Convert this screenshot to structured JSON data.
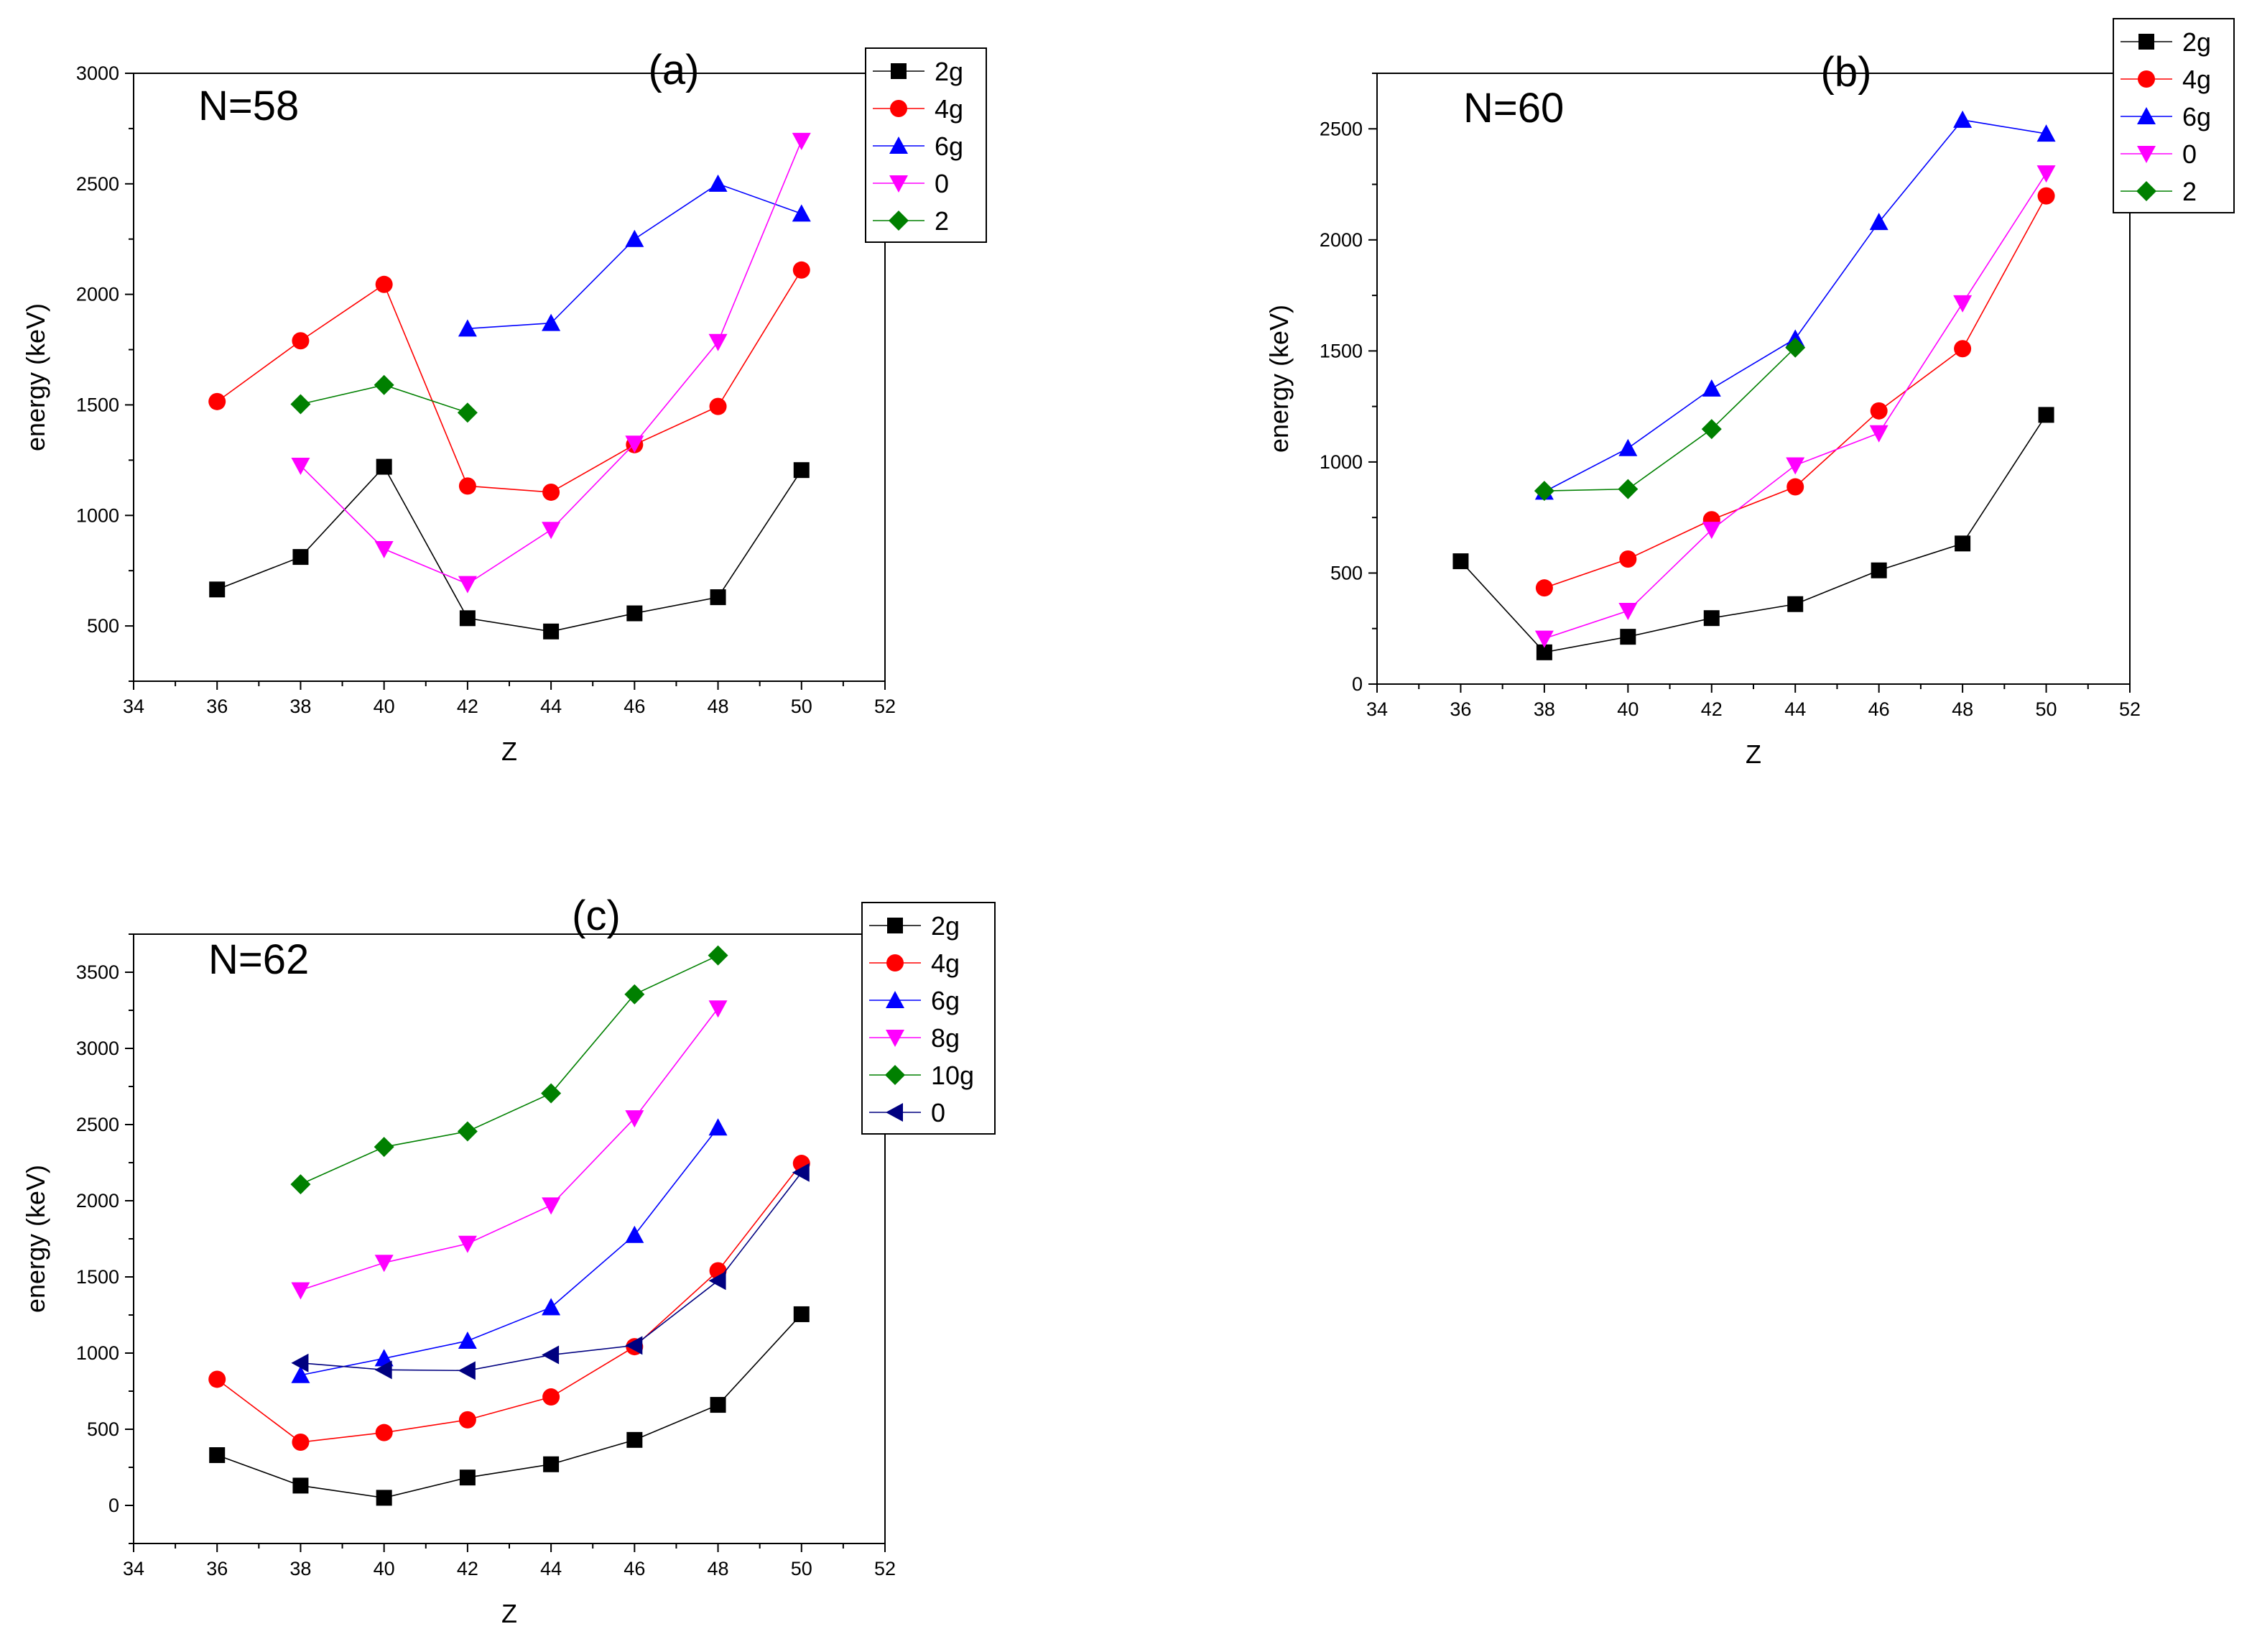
{
  "chart_data": [
    {
      "id": "a",
      "type": "line",
      "panel_label": "(a)",
      "annotation": "N=58",
      "xlabel": "Z",
      "ylabel": "energy (keV)",
      "xlim": [
        34,
        52
      ],
      "ylim": [
        250,
        3000
      ],
      "x_ticks": [
        34,
        36,
        38,
        40,
        42,
        44,
        46,
        48,
        50,
        52
      ],
      "y_ticks": [
        500,
        1000,
        1500,
        2000,
        2500,
        3000
      ],
      "legend_position": "top-right",
      "series": [
        {
          "name": "2g",
          "color": "#000000",
          "marker": "square",
          "points": [
            [
              36,
              665
            ],
            [
              38,
              812
            ],
            [
              40,
              1220
            ],
            [
              42,
              535
            ],
            [
              44,
              475
            ],
            [
              46,
              557
            ],
            [
              48,
              630
            ],
            [
              50,
              1205
            ]
          ]
        },
        {
          "name": "4g",
          "color": "#ff0000",
          "marker": "circle",
          "points": [
            [
              36,
              1515
            ],
            [
              38,
              1790
            ],
            [
              40,
              2045
            ],
            [
              42,
              1133
            ],
            [
              44,
              1105
            ],
            [
              46,
              1320
            ],
            [
              48,
              1493
            ],
            [
              50,
              2110
            ]
          ]
        },
        {
          "name": "6g",
          "color": "#0000ff",
          "marker": "triangle-up",
          "points": [
            [
              42,
              1845
            ],
            [
              44,
              1870
            ],
            [
              46,
              2250
            ],
            [
              48,
              2500
            ],
            [
              50,
              2365
            ]
          ]
        },
        {
          "name": "0",
          "color": "#ff00ff",
          "marker": "triangle-down",
          "points": [
            [
              38,
              1225
            ],
            [
              40,
              848
            ],
            [
              42,
              690
            ],
            [
              44,
              935
            ],
            [
              46,
              1325
            ],
            [
              48,
              1785
            ],
            [
              50,
              2695
            ]
          ]
        },
        {
          "name": "2",
          "color": "#008000",
          "marker": "diamond",
          "points": [
            [
              38,
              1503
            ],
            [
              40,
              1590
            ],
            [
              42,
              1465
            ]
          ]
        }
      ]
    },
    {
      "id": "b",
      "type": "line",
      "panel_label": "(b)",
      "annotation": "N=60",
      "xlabel": "Z",
      "ylabel": "energy (keV)",
      "xlim": [
        34,
        52
      ],
      "ylim": [
        0,
        2750
      ],
      "x_ticks": [
        34,
        36,
        38,
        40,
        42,
        44,
        46,
        48,
        50,
        52
      ],
      "y_ticks": [
        0,
        500,
        1000,
        1500,
        2000,
        2500
      ],
      "legend_position": "top-right",
      "series": [
        {
          "name": "2g",
          "color": "#000000",
          "marker": "square",
          "points": [
            [
              36,
              553
            ],
            [
              38,
              143
            ],
            [
              40,
              213
            ],
            [
              42,
              297
            ],
            [
              44,
              360
            ],
            [
              46,
              512
            ],
            [
              48,
              633
            ],
            [
              50,
              1212
            ]
          ]
        },
        {
          "name": "4g",
          "color": "#ff0000",
          "marker": "circle",
          "points": [
            [
              38,
              433
            ],
            [
              40,
              563
            ],
            [
              42,
              740
            ],
            [
              44,
              888
            ],
            [
              46,
              1230
            ],
            [
              48,
              1510
            ],
            [
              50,
              2198
            ]
          ]
        },
        {
          "name": "6g",
          "color": "#0000ff",
          "marker": "triangle-up",
          "points": [
            [
              38,
              866
            ],
            [
              40,
              1062
            ],
            [
              42,
              1330
            ],
            [
              44,
              1555
            ],
            [
              46,
              2080
            ],
            [
              48,
              2540
            ],
            [
              50,
              2478
            ]
          ]
        },
        {
          "name": "0",
          "color": "#ff00ff",
          "marker": "triangle-down",
          "points": [
            [
              38,
              205
            ],
            [
              40,
              330
            ],
            [
              42,
              695
            ],
            [
              44,
              985
            ],
            [
              46,
              1130
            ],
            [
              48,
              1715
            ],
            [
              50,
              2300
            ]
          ]
        },
        {
          "name": "2",
          "color": "#008000",
          "marker": "diamond",
          "points": [
            [
              38,
              870
            ],
            [
              40,
              878
            ],
            [
              42,
              1148
            ],
            [
              44,
              1515
            ]
          ]
        }
      ]
    },
    {
      "id": "c",
      "type": "line",
      "panel_label": "(c)",
      "annotation": "N=62",
      "xlabel": "Z",
      "ylabel": "energy (keV)",
      "xlim": [
        34,
        52
      ],
      "ylim": [
        -250,
        3750
      ],
      "x_ticks": [
        34,
        36,
        38,
        40,
        42,
        44,
        46,
        48,
        50,
        52
      ],
      "y_ticks": [
        0,
        500,
        1000,
        1500,
        2000,
        2500,
        3000,
        3500
      ],
      "legend_position": "top-right",
      "series": [
        {
          "name": "2g",
          "color": "#000000",
          "marker": "square",
          "points": [
            [
              36,
              330
            ],
            [
              38,
              130
            ],
            [
              40,
              50
            ],
            [
              42,
              183
            ],
            [
              44,
              270
            ],
            [
              46,
              430
            ],
            [
              48,
              660
            ],
            [
              50,
              1255
            ]
          ]
        },
        {
          "name": "4g",
          "color": "#ff0000",
          "marker": "circle",
          "points": [
            [
              36,
              828
            ],
            [
              38,
              415
            ],
            [
              40,
              478
            ],
            [
              42,
              562
            ],
            [
              44,
              712
            ],
            [
              46,
              1042
            ],
            [
              48,
              1540
            ],
            [
              50,
              2245
            ]
          ]
        },
        {
          "name": "6g",
          "color": "#0000ff",
          "marker": "triangle-up",
          "points": [
            [
              38,
              855
            ],
            [
              40,
              965
            ],
            [
              42,
              1080
            ],
            [
              44,
              1300
            ],
            [
              46,
              1775
            ],
            [
              48,
              2480
            ]
          ]
        },
        {
          "name": "8g",
          "color": "#ff00ff",
          "marker": "triangle-down",
          "points": [
            [
              38,
              1413
            ],
            [
              40,
              1593
            ],
            [
              42,
              1718
            ],
            [
              44,
              1970
            ],
            [
              46,
              2542
            ],
            [
              48,
              3263
            ]
          ]
        },
        {
          "name": "10g",
          "color": "#008000",
          "marker": "diamond",
          "points": [
            [
              38,
              2108
            ],
            [
              40,
              2353
            ],
            [
              42,
              2455
            ],
            [
              44,
              2705
            ],
            [
              46,
              3355
            ],
            [
              48,
              3610
            ]
          ]
        },
        {
          "name": "0",
          "color": "#000080",
          "marker": "triangle-left",
          "points": [
            [
              38,
              935
            ],
            [
              40,
              890
            ],
            [
              42,
              885
            ],
            [
              44,
              988
            ],
            [
              46,
              1050
            ],
            [
              48,
              1475
            ],
            [
              50,
              2185
            ]
          ]
        }
      ]
    }
  ]
}
